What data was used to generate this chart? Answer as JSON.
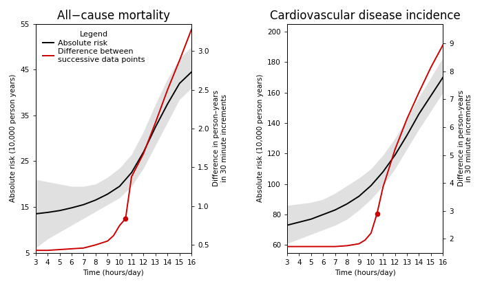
{
  "title1": "All−cause mortality",
  "title2": "Cardiovascular disease incidence",
  "xlabel": "Time (hours/day)",
  "ylabel_left1": "Absolute risk (10,000 person years)",
  "ylabel_right1": "Difference in person–years\nin 30 minute increments",
  "ylabel_left2": "Absolute risk (10,000 person years)",
  "ylabel_right2": "Difference in person–years\nin 30 minute increments",
  "legend_title": "Legend",
  "legend_black": "Absolute risk",
  "legend_red": "Difference between\nsuccessive data points",
  "x_ticks": [
    3,
    4,
    5,
    6,
    7,
    8,
    9,
    10,
    11,
    12,
    13,
    14,
    15,
    16
  ],
  "plot1": {
    "x_black": [
      3,
      4,
      5,
      6,
      7,
      8,
      9,
      10,
      11,
      12,
      13,
      14,
      15,
      16
    ],
    "y_black": [
      13.5,
      13.8,
      14.2,
      14.8,
      15.5,
      16.5,
      17.8,
      19.5,
      22.5,
      27.0,
      32.5,
      37.5,
      42.0,
      44.5
    ],
    "y_black_lo": [
      6.0,
      8.0,
      9.5,
      11.0,
      12.5,
      14.0,
      15.5,
      17.0,
      19.5,
      23.5,
      28.5,
      33.5,
      38.5,
      41.0
    ],
    "y_black_hi": [
      21.0,
      20.5,
      20.0,
      19.5,
      19.5,
      20.0,
      21.5,
      23.5,
      26.5,
      31.5,
      37.5,
      43.0,
      47.5,
      50.0
    ],
    "x_red": [
      3,
      4,
      5,
      6,
      7,
      8,
      9,
      9.5,
      10,
      10.5,
      11,
      12,
      13,
      14,
      15,
      16
    ],
    "y_red": [
      0.43,
      0.43,
      0.44,
      0.45,
      0.46,
      0.5,
      0.55,
      0.62,
      0.75,
      0.84,
      1.38,
      1.68,
      2.08,
      2.5,
      2.88,
      3.28
    ],
    "marker_x": 10.5,
    "marker_y_red": 0.84,
    "ylim_left": [
      5,
      55
    ],
    "ylim_right": [
      0.4,
      3.35
    ],
    "yticks_left": [
      5,
      15,
      25,
      35,
      45,
      55
    ],
    "yticks_right": [
      0.5,
      1.0,
      1.5,
      2.0,
      2.5,
      3.0
    ]
  },
  "plot2": {
    "x_black": [
      3,
      4,
      5,
      6,
      7,
      8,
      9,
      10,
      11,
      12,
      13,
      14,
      15,
      16
    ],
    "y_black": [
      73,
      75,
      77,
      80,
      83,
      87,
      92,
      99,
      108,
      119,
      132,
      146,
      158,
      170
    ],
    "y_black_lo": [
      61,
      64,
      67,
      70,
      73,
      77,
      83,
      90,
      99,
      110,
      123,
      136,
      148,
      160
    ],
    "y_black_hi": [
      86,
      87,
      88,
      90,
      94,
      99,
      104,
      110,
      119,
      130,
      143,
      157,
      170,
      183
    ],
    "x_red": [
      3,
      4,
      5,
      6,
      7,
      8,
      9,
      9.5,
      10,
      10.5,
      11,
      12,
      13,
      14,
      15,
      16
    ],
    "y_red": [
      1.72,
      1.72,
      1.72,
      1.72,
      1.72,
      1.75,
      1.82,
      1.95,
      2.2,
      2.9,
      3.85,
      5.2,
      6.3,
      7.25,
      8.15,
      8.95
    ],
    "marker_x": 10.5,
    "marker_y_red": 2.9,
    "ylim_left": [
      55,
      205
    ],
    "ylim_right": [
      1.5,
      9.7
    ],
    "yticks_left": [
      60,
      80,
      100,
      120,
      140,
      160,
      180,
      200
    ],
    "yticks_right": [
      2,
      3,
      4,
      5,
      6,
      7,
      8,
      9
    ]
  },
  "bg_color": "#ffffff",
  "black_color": "#000000",
  "red_color": "#cc0000",
  "gray_fill": "#c8c8c8",
  "title_fontsize": 12,
  "label_fontsize": 7.5,
  "tick_fontsize": 7.5,
  "legend_fontsize": 8
}
